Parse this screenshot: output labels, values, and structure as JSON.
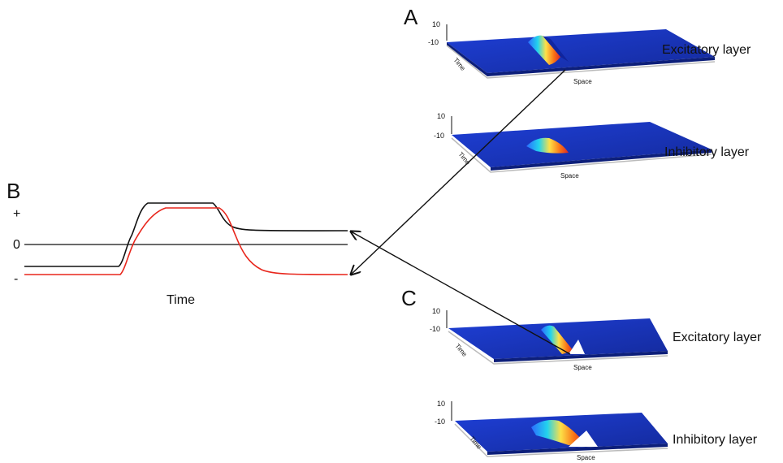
{
  "panels": {
    "A": {
      "letter": "A",
      "layers": [
        {
          "label": "Excitatory layer",
          "tick_top": "10",
          "tick_bottom": "-10",
          "time_label": "Time",
          "space_label": "Space"
        },
        {
          "label": "Inhibitory layer",
          "tick_top": "10",
          "tick_bottom": "-10",
          "time_label": "Time",
          "space_label": "Space"
        }
      ]
    },
    "B": {
      "letter": "B",
      "plus_label": "+",
      "zero_label": "0",
      "minus_label": "-",
      "x_label": "Time"
    },
    "C": {
      "letter": "C",
      "layers": [
        {
          "label": "Excitatory layer",
          "tick_top": "10",
          "tick_bottom": "-10",
          "time_label": "Time",
          "space_label": "Space"
        },
        {
          "label": "Inhibitory layer",
          "tick_top": "10",
          "tick_bottom": "-10",
          "time_label": "Time",
          "space_label": "Space"
        }
      ]
    }
  },
  "colors": {
    "surface": "#1a35c8",
    "surface_dark": "#0a1a8a",
    "trace_black": "#111111",
    "trace_red": "#e8261c",
    "arrow": "#111111"
  }
}
